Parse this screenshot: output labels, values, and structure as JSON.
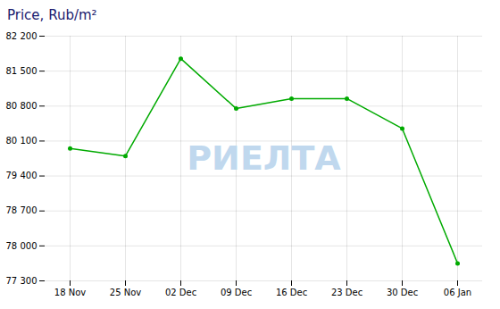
{
  "chart_data": {
    "type": "line",
    "title": "Price, Rub/m²",
    "categories": [
      "18 Nov",
      "25 Nov",
      "02 Dec",
      "09 Dec",
      "16 Dec",
      "23 Dec",
      "30 Dec",
      "06 Jan"
    ],
    "values": [
      79950,
      79800,
      81750,
      80750,
      80950,
      80950,
      80350,
      77650
    ],
    "color": "#00aa00",
    "marker": "circle",
    "ylim": [
      77300,
      82200
    ],
    "yticks": [
      {
        "value": 77300,
        "label": "77 300"
      },
      {
        "value": 78000,
        "label": "78 000"
      },
      {
        "value": 78700,
        "label": "78 700"
      },
      {
        "value": 79400,
        "label": "79 400"
      },
      {
        "value": 80100,
        "label": "80 100"
      },
      {
        "value": 80800,
        "label": "80 800"
      },
      {
        "value": 81500,
        "label": "81 500"
      },
      {
        "value": 82200,
        "label": "82 200"
      }
    ],
    "grid": true,
    "annotations": [
      "РИЕЛТА"
    ]
  }
}
